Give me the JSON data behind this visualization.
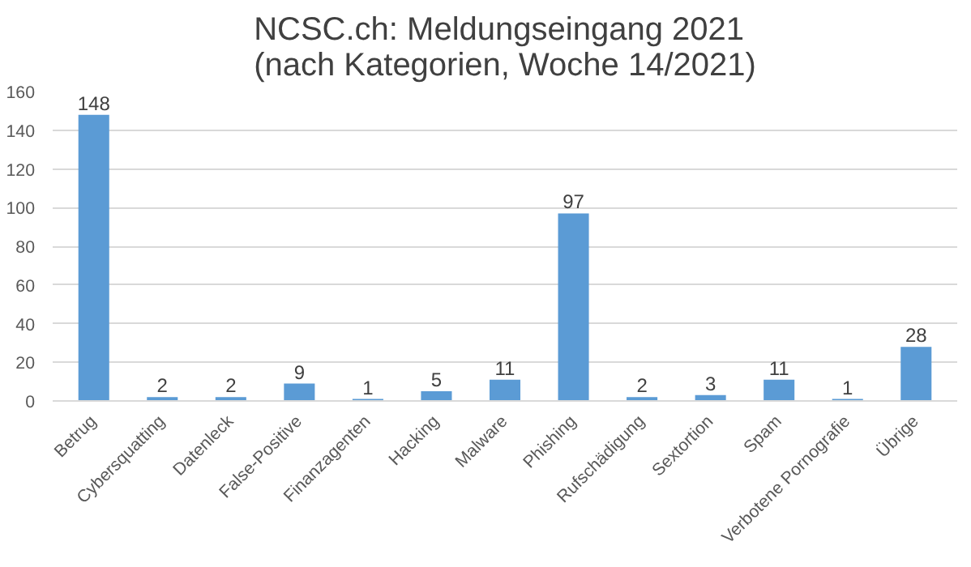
{
  "chart_data": {
    "type": "bar",
    "title": "NCSC.ch: Meldungseingang 2021\n(nach Kategorien, Woche 14/2021)",
    "categories": [
      "Betrug",
      "Cybersquatting",
      "Datenleck",
      "False-Positive",
      "Finanzagenten",
      "Hacking",
      "Malware",
      "Phishing",
      "Rufschädigung",
      "Sextortion",
      "Spam",
      "Verbotene Pornografie",
      "Übrige"
    ],
    "values": [
      148,
      2,
      2,
      9,
      1,
      5,
      11,
      97,
      2,
      3,
      11,
      1,
      28
    ],
    "color": "#5b9bd5",
    "ylim": [
      0,
      160
    ],
    "yticks": [
      0,
      20,
      40,
      60,
      80,
      100,
      120,
      140,
      160
    ],
    "grid": "y",
    "data_labels": true
  }
}
